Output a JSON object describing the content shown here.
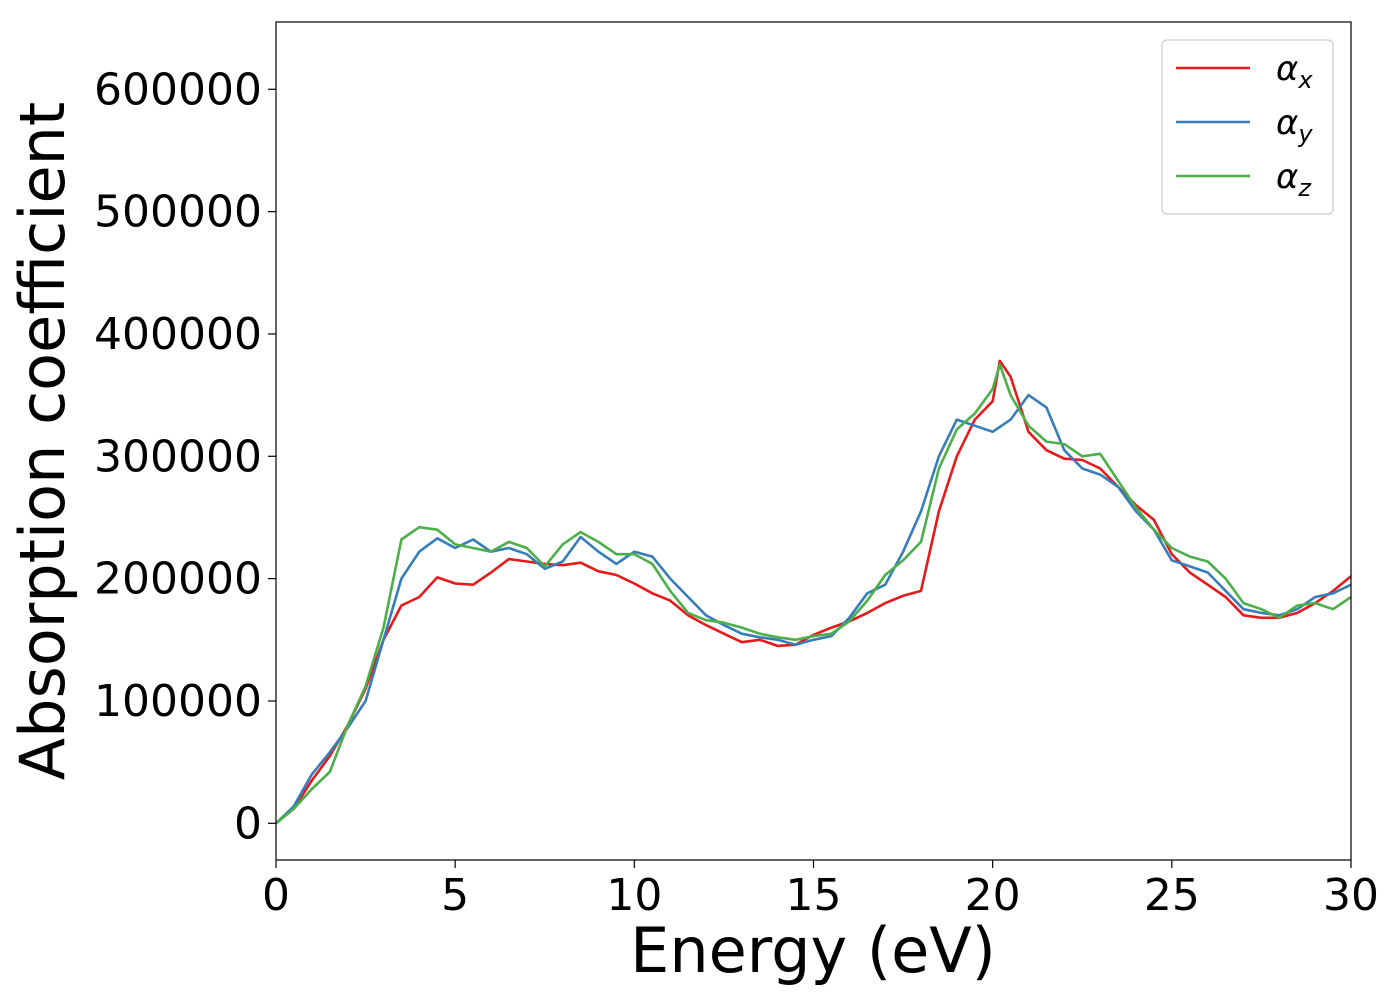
{
  "chart_data": {
    "type": "line",
    "title": "",
    "xlabel": "Energy (eV)",
    "ylabel": "Absorption coefficient",
    "xlim": [
      0,
      30
    ],
    "ylim": [
      -30000,
      655000
    ],
    "x_ticks": [
      0,
      5,
      10,
      15,
      20,
      25,
      30
    ],
    "y_ticks": [
      0,
      100000,
      200000,
      300000,
      400000,
      500000,
      600000
    ],
    "grid": false,
    "legend_position": "top-right",
    "series": [
      {
        "name": "α",
        "name_subscript": "x",
        "color": "#e41a1c",
        "points": [
          [
            0,
            0
          ],
          [
            0.5,
            12000
          ],
          [
            1,
            35000
          ],
          [
            1.5,
            55000
          ],
          [
            2,
            80000
          ],
          [
            2.5,
            110000
          ],
          [
            3,
            150000
          ],
          [
            3.5,
            178000
          ],
          [
            4,
            185000
          ],
          [
            4.5,
            201000
          ],
          [
            5,
            196000
          ],
          [
            5.5,
            195000
          ],
          [
            6,
            205000
          ],
          [
            6.5,
            216000
          ],
          [
            7,
            214000
          ],
          [
            7.5,
            212000
          ],
          [
            8,
            211000
          ],
          [
            8.5,
            213000
          ],
          [
            9,
            206000
          ],
          [
            9.5,
            203000
          ],
          [
            10,
            196000
          ],
          [
            10.5,
            188000
          ],
          [
            11,
            182000
          ],
          [
            11.5,
            170000
          ],
          [
            12,
            162000
          ],
          [
            12.5,
            155000
          ],
          [
            13,
            148000
          ],
          [
            13.5,
            150000
          ],
          [
            14,
            145000
          ],
          [
            14.5,
            146000
          ],
          [
            15,
            154000
          ],
          [
            15.5,
            160000
          ],
          [
            16,
            165000
          ],
          [
            16.5,
            172000
          ],
          [
            17,
            180000
          ],
          [
            17.5,
            186000
          ],
          [
            18,
            190000
          ],
          [
            18.5,
            255000
          ],
          [
            19,
            300000
          ],
          [
            19.5,
            330000
          ],
          [
            20,
            345000
          ],
          [
            20.2,
            378000
          ],
          [
            20.5,
            365000
          ],
          [
            21,
            320000
          ],
          [
            21.5,
            305000
          ],
          [
            22,
            298000
          ],
          [
            22.5,
            297000
          ],
          [
            23,
            290000
          ],
          [
            23.5,
            275000
          ],
          [
            24,
            260000
          ],
          [
            24.5,
            248000
          ],
          [
            25,
            220000
          ],
          [
            25.5,
            205000
          ],
          [
            26,
            195000
          ],
          [
            26.5,
            185000
          ],
          [
            27,
            170000
          ],
          [
            27.5,
            168000
          ],
          [
            28,
            168000
          ],
          [
            28.5,
            172000
          ],
          [
            29,
            180000
          ],
          [
            29.5,
            190000
          ],
          [
            30,
            202000
          ]
        ]
      },
      {
        "name": "α",
        "name_subscript": "y",
        "color": "#377eb8",
        "points": [
          [
            0,
            0
          ],
          [
            0.5,
            14000
          ],
          [
            1,
            40000
          ],
          [
            1.5,
            58000
          ],
          [
            2,
            78000
          ],
          [
            2.5,
            100000
          ],
          [
            3,
            150000
          ],
          [
            3.5,
            200000
          ],
          [
            4,
            222000
          ],
          [
            4.5,
            233000
          ],
          [
            5,
            225000
          ],
          [
            5.5,
            232000
          ],
          [
            6,
            222000
          ],
          [
            6.5,
            225000
          ],
          [
            7,
            220000
          ],
          [
            7.5,
            208000
          ],
          [
            8,
            214000
          ],
          [
            8.5,
            234000
          ],
          [
            9,
            222000
          ],
          [
            9.5,
            212000
          ],
          [
            10,
            222000
          ],
          [
            10.5,
            218000
          ],
          [
            11,
            200000
          ],
          [
            11.5,
            185000
          ],
          [
            12,
            170000
          ],
          [
            12.5,
            162000
          ],
          [
            13,
            155000
          ],
          [
            13.5,
            152000
          ],
          [
            14,
            150000
          ],
          [
            14.5,
            146000
          ],
          [
            15,
            150000
          ],
          [
            15.5,
            153000
          ],
          [
            16,
            168000
          ],
          [
            16.5,
            188000
          ],
          [
            17,
            195000
          ],
          [
            17.5,
            222000
          ],
          [
            18,
            255000
          ],
          [
            18.5,
            300000
          ],
          [
            19,
            330000
          ],
          [
            19.5,
            325000
          ],
          [
            20,
            320000
          ],
          [
            20.5,
            330000
          ],
          [
            21,
            350000
          ],
          [
            21.5,
            340000
          ],
          [
            22,
            305000
          ],
          [
            22.5,
            290000
          ],
          [
            23,
            285000
          ],
          [
            23.5,
            275000
          ],
          [
            24,
            255000
          ],
          [
            24.5,
            240000
          ],
          [
            25,
            215000
          ],
          [
            25.5,
            210000
          ],
          [
            26,
            205000
          ],
          [
            26.5,
            190000
          ],
          [
            27,
            175000
          ],
          [
            27.5,
            172000
          ],
          [
            28,
            170000
          ],
          [
            28.5,
            175000
          ],
          [
            29,
            185000
          ],
          [
            29.5,
            188000
          ],
          [
            30,
            195000
          ]
        ]
      },
      {
        "name": "α",
        "name_subscript": "z",
        "color": "#4daf4a",
        "points": [
          [
            0,
            0
          ],
          [
            0.5,
            12000
          ],
          [
            1,
            28000
          ],
          [
            1.5,
            42000
          ],
          [
            2,
            80000
          ],
          [
            2.5,
            112000
          ],
          [
            3,
            160000
          ],
          [
            3.5,
            232000
          ],
          [
            4,
            242000
          ],
          [
            4.5,
            240000
          ],
          [
            5,
            228000
          ],
          [
            5.5,
            225000
          ],
          [
            6,
            222000
          ],
          [
            6.5,
            230000
          ],
          [
            7,
            225000
          ],
          [
            7.5,
            210000
          ],
          [
            8,
            228000
          ],
          [
            8.5,
            238000
          ],
          [
            9,
            230000
          ],
          [
            9.5,
            220000
          ],
          [
            10,
            220000
          ],
          [
            10.5,
            212000
          ],
          [
            11,
            190000
          ],
          [
            11.5,
            172000
          ],
          [
            12,
            166000
          ],
          [
            12.5,
            164000
          ],
          [
            13,
            160000
          ],
          [
            13.5,
            155000
          ],
          [
            14,
            152000
          ],
          [
            14.5,
            150000
          ],
          [
            15,
            153000
          ],
          [
            15.5,
            155000
          ],
          [
            16,
            165000
          ],
          [
            16.5,
            182000
          ],
          [
            17,
            203000
          ],
          [
            17.5,
            215000
          ],
          [
            18,
            230000
          ],
          [
            18.5,
            290000
          ],
          [
            19,
            322000
          ],
          [
            19.5,
            335000
          ],
          [
            20,
            355000
          ],
          [
            20.2,
            375000
          ],
          [
            20.5,
            350000
          ],
          [
            21,
            325000
          ],
          [
            21.5,
            312000
          ],
          [
            22,
            310000
          ],
          [
            22.5,
            300000
          ],
          [
            23,
            302000
          ],
          [
            23.5,
            280000
          ],
          [
            24,
            258000
          ],
          [
            24.5,
            240000
          ],
          [
            25,
            225000
          ],
          [
            25.5,
            218000
          ],
          [
            26,
            214000
          ],
          [
            26.5,
            200000
          ],
          [
            27,
            180000
          ],
          [
            27.5,
            175000
          ],
          [
            28,
            168000
          ],
          [
            28.5,
            178000
          ],
          [
            29,
            180000
          ],
          [
            29.5,
            175000
          ],
          [
            30,
            185000
          ]
        ]
      }
    ]
  }
}
